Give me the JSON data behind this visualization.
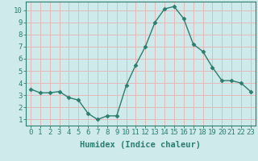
{
  "x": [
    0,
    1,
    2,
    3,
    4,
    5,
    6,
    7,
    8,
    9,
    10,
    11,
    12,
    13,
    14,
    15,
    16,
    17,
    18,
    19,
    20,
    21,
    22,
    23
  ],
  "y": [
    3.5,
    3.2,
    3.2,
    3.3,
    2.8,
    2.6,
    1.5,
    1.0,
    1.3,
    1.3,
    3.8,
    5.5,
    7.0,
    9.0,
    10.1,
    10.3,
    9.3,
    7.2,
    6.6,
    5.3,
    4.2,
    4.2,
    4.0,
    3.3
  ],
  "line_color": "#2d7d6f",
  "marker_color": "#2d7d6f",
  "bg_color": "#ceeaea",
  "grid_color": "#e8b0b0",
  "xlabel": "Humidex (Indice chaleur)",
  "xlim": [
    -0.5,
    23.5
  ],
  "ylim": [
    0.5,
    10.7
  ],
  "yticks": [
    1,
    2,
    3,
    4,
    5,
    6,
    7,
    8,
    9,
    10
  ],
  "xticks": [
    0,
    1,
    2,
    3,
    4,
    5,
    6,
    7,
    8,
    9,
    10,
    11,
    12,
    13,
    14,
    15,
    16,
    17,
    18,
    19,
    20,
    21,
    22,
    23
  ],
  "xtick_labels": [
    "0",
    "1",
    "2",
    "3",
    "4",
    "5",
    "6",
    "7",
    "8",
    "9",
    "10",
    "11",
    "12",
    "13",
    "14",
    "15",
    "16",
    "17",
    "18",
    "19",
    "20",
    "21",
    "22",
    "23"
  ],
  "xlabel_fontsize": 7.5,
  "tick_fontsize": 6.5,
  "linewidth": 1.0,
  "markersize": 2.5
}
